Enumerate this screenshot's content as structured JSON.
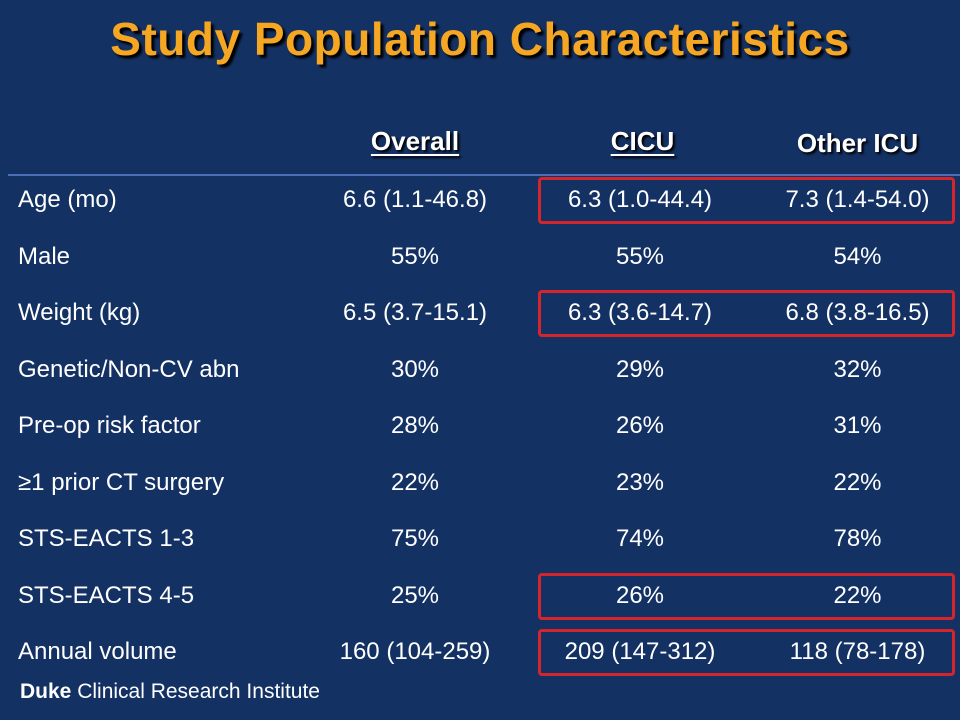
{
  "title": "Study Population Characteristics",
  "columns": [
    "",
    "Overall",
    "CICU",
    "Other ICU"
  ],
  "rows": [
    {
      "label": "Age (mo)",
      "overall": "6.6 (1.1-46.8)",
      "cicu": "6.3 (1.0-44.4)",
      "other": "7.3 (1.4-54.0)",
      "highlighted": true
    },
    {
      "label": "Male",
      "overall": "55%",
      "cicu": "55%",
      "other": "54%",
      "highlighted": false
    },
    {
      "label": "Weight (kg)",
      "overall": "6.5 (3.7-15.1)",
      "cicu": "6.3 (3.6-14.7)",
      "other": "6.8 (3.8-16.5)",
      "highlighted": true
    },
    {
      "label": "Genetic/Non-CV abn",
      "overall": "30%",
      "cicu": "29%",
      "other": "32%",
      "highlighted": false
    },
    {
      "label": "Pre-op risk factor",
      "overall": "28%",
      "cicu": "26%",
      "other": "31%",
      "highlighted": false
    },
    {
      "label": "≥1 prior CT surgery",
      "overall": "22%",
      "cicu": "23%",
      "other": "22%",
      "highlighted": false
    },
    {
      "label": "STS-EACTS 1-3",
      "overall": "75%",
      "cicu": "74%",
      "other": "78%",
      "highlighted": false
    },
    {
      "label": "STS-EACTS 4-5",
      "overall": "25%",
      "cicu": "26%",
      "other": "22%",
      "highlighted": true
    },
    {
      "label": "Annual volume",
      "overall": "160 (104-259)",
      "cicu": "209 (147-312)",
      "other": "118 (78-178)",
      "highlighted": true
    }
  ],
  "footer": {
    "bold": "Duke",
    "rest": " Clinical Research Institute"
  },
  "colors": {
    "background": "#143163",
    "title": "#f5a623",
    "highlight": "#d4252c"
  }
}
